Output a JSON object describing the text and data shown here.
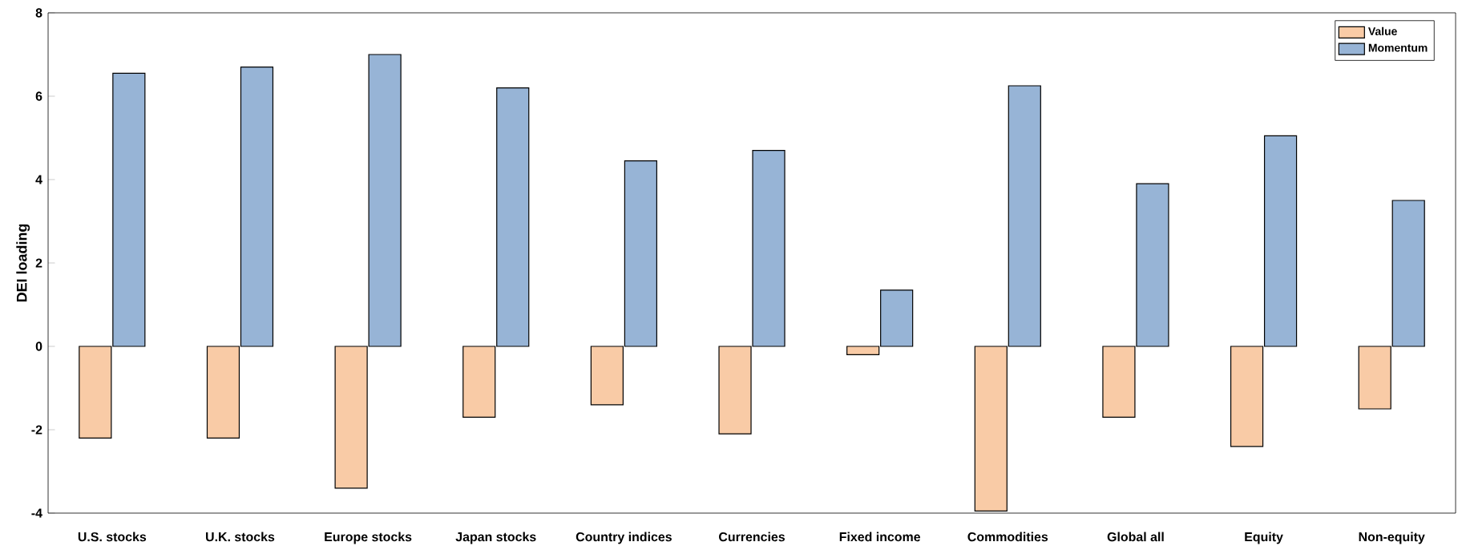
{
  "chart_data": {
    "type": "bar",
    "ylabel": "DEI loading",
    "categories": [
      "U.S. stocks",
      "U.K. stocks",
      "Europe stocks",
      "Japan stocks",
      "Country indices",
      "Currencies",
      "Fixed income",
      "Commodities",
      "Global all",
      "Equity",
      "Non-equity"
    ],
    "series": [
      {
        "name": "Value",
        "color": "#f9cba6",
        "values": [
          -2.2,
          -2.2,
          -3.4,
          -1.7,
          -1.4,
          -2.1,
          -0.2,
          -3.95,
          -1.7,
          -2.4,
          -1.5
        ]
      },
      {
        "name": "Momentum",
        "color": "#97b4d6",
        "values": [
          6.55,
          6.7,
          7.0,
          6.2,
          4.45,
          4.7,
          1.35,
          6.25,
          3.9,
          5.05,
          3.5
        ]
      }
    ],
    "ylim": [
      -4,
      8
    ],
    "yticks": [
      -4,
      -2,
      0,
      2,
      4,
      6,
      8
    ],
    "legend": "top right",
    "grid": false
  }
}
